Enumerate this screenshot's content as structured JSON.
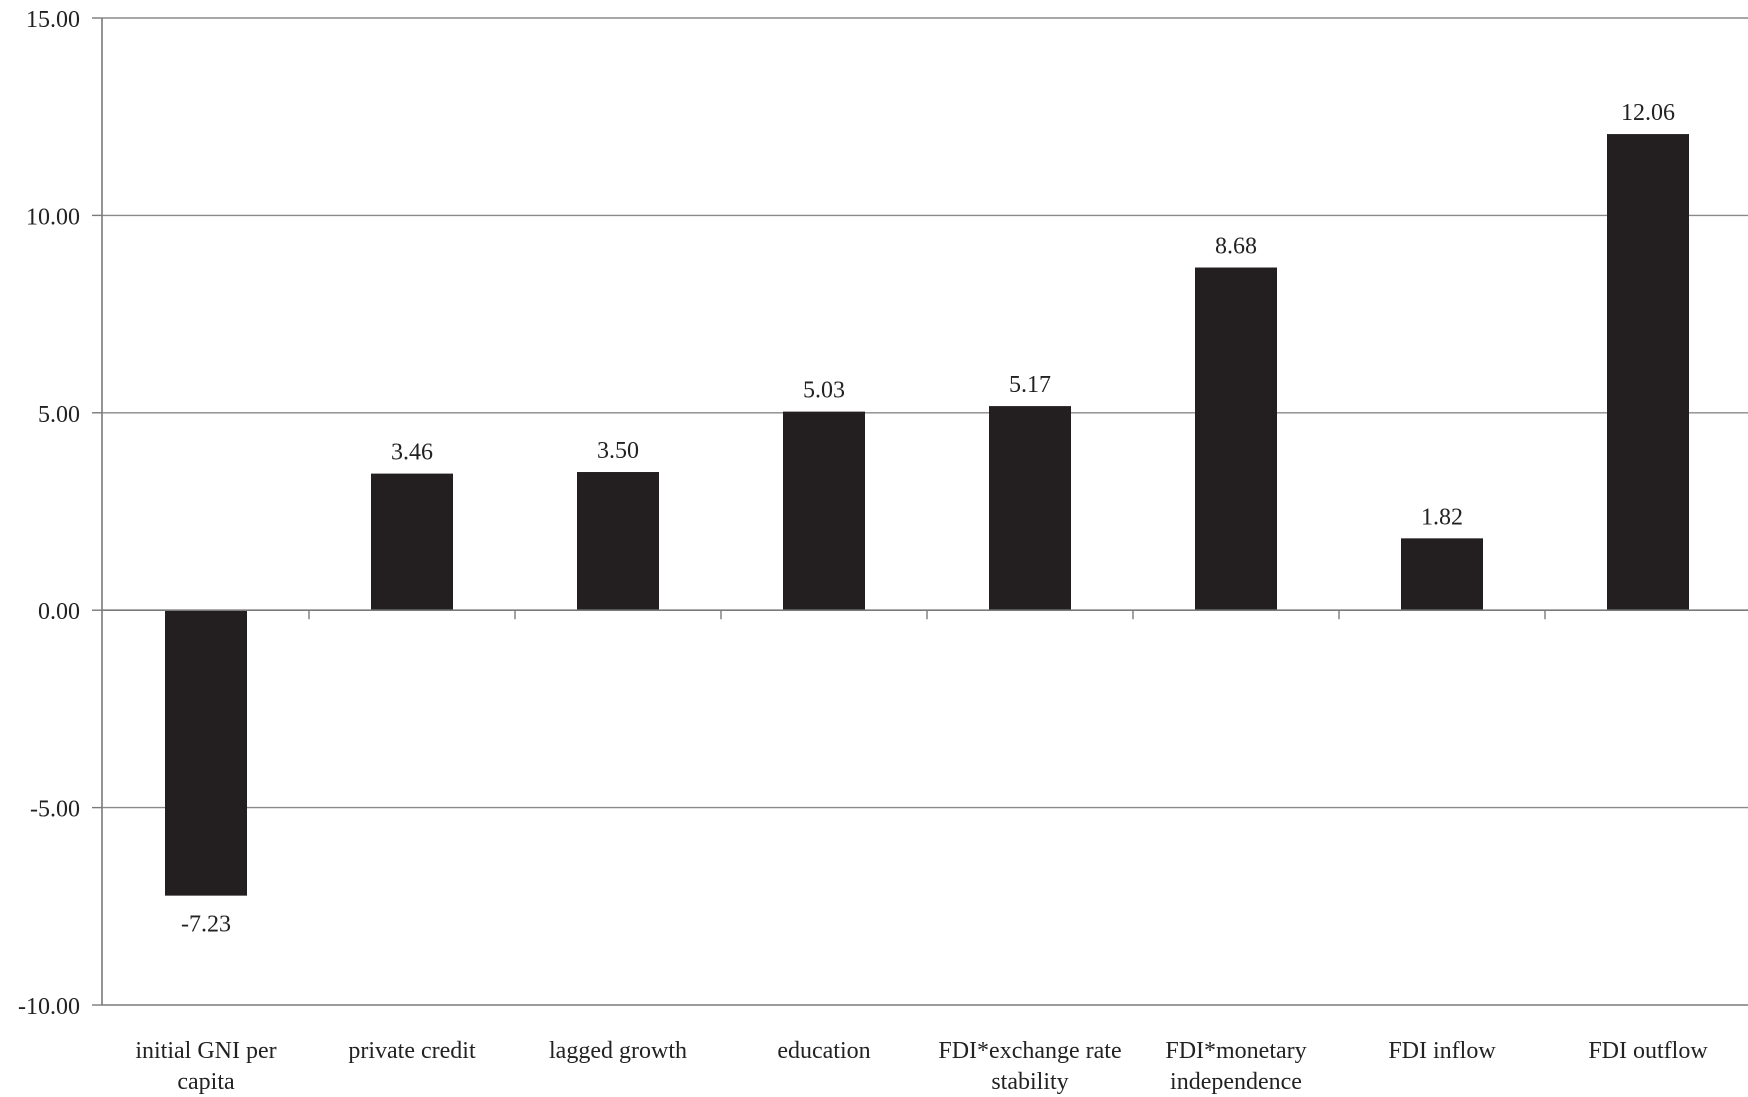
{
  "chart_data": {
    "type": "bar",
    "categories": [
      [
        "initial GNI per",
        "capita"
      ],
      [
        "private credit"
      ],
      [
        "lagged growth"
      ],
      [
        "education"
      ],
      [
        "FDI*exchange rate",
        "stability"
      ],
      [
        "FDI*monetary",
        "independence"
      ],
      [
        "FDI inflow"
      ],
      [
        "FDI outflow"
      ]
    ],
    "values": [
      -7.23,
      3.46,
      3.5,
      5.03,
      5.17,
      8.68,
      1.82,
      12.06
    ],
    "data_labels": [
      "-7.23",
      "3.46",
      "3.50",
      "5.03",
      "5.17",
      "8.68",
      "1.82",
      "12.06"
    ],
    "yticks": [
      {
        "value": 15,
        "label": "15.00"
      },
      {
        "value": 10,
        "label": "10.00"
      },
      {
        "value": 5,
        "label": "5.00"
      },
      {
        "value": 0,
        "label": "0.00"
      },
      {
        "value": -5,
        "label": "-5.00"
      },
      {
        "value": -10,
        "label": "-10.00"
      }
    ],
    "ylim": [
      -10,
      15
    ],
    "title": "",
    "xlabel": "",
    "ylabel": "",
    "grid": true,
    "legend": "none",
    "colors": {
      "bar": "#231f20",
      "grid": "#8a8a8a",
      "text": "#222222"
    }
  }
}
